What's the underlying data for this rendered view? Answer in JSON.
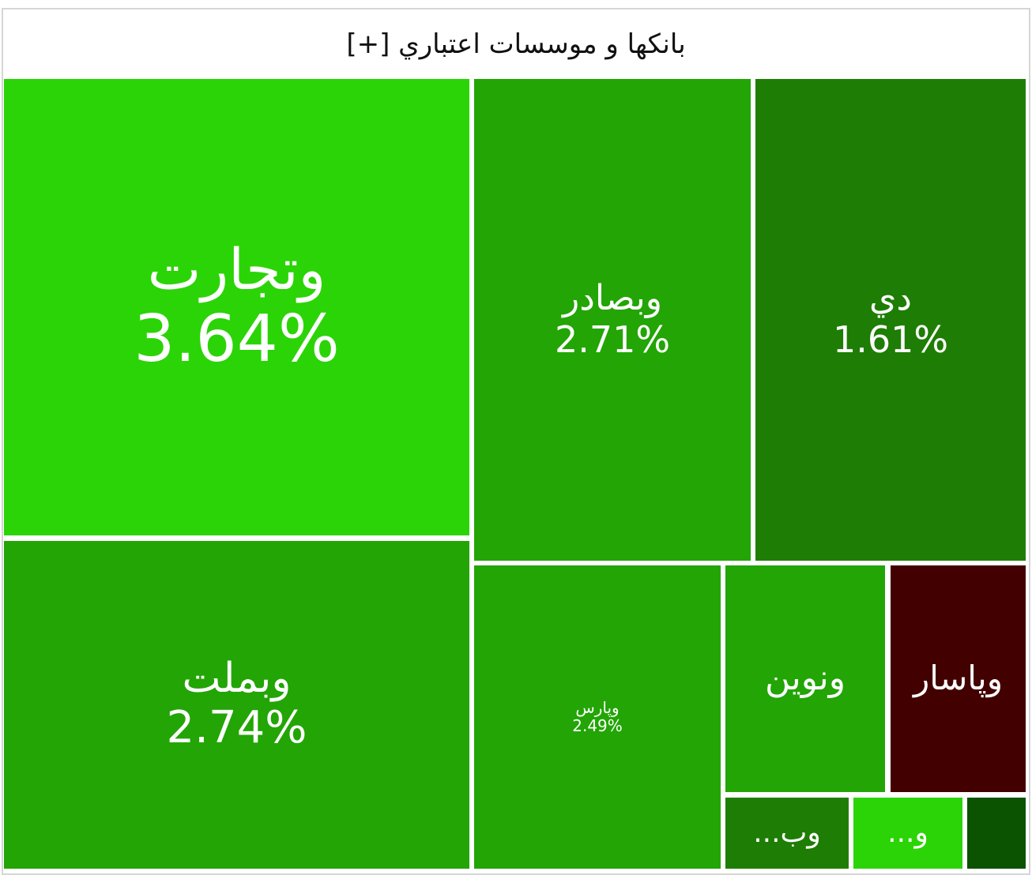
{
  "header": {
    "title": "بانكها و موسسات اعتباري [+]"
  },
  "tiles": [
    {
      "label": "وتجارت",
      "change": "3.64%"
    },
    {
      "label": "وبملت",
      "change": "2.74%"
    },
    {
      "label": "وبصادر",
      "change": "2.71%"
    },
    {
      "label": "دي",
      "change": "1.61%"
    },
    {
      "label": "وپارس",
      "change": "2.49%"
    },
    {
      "label": "ونوين"
    },
    {
      "label": "وپاسار"
    },
    {
      "label": "وب..."
    },
    {
      "label": "و..."
    }
  ]
}
